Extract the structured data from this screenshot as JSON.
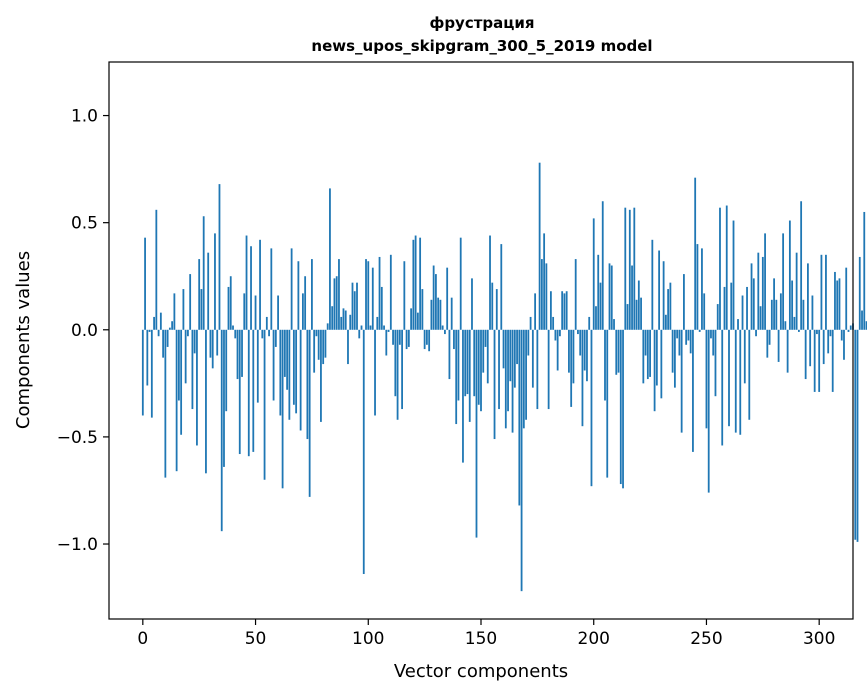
{
  "chart_data": {
    "type": "bar",
    "title": "фрустрация",
    "subtitle": "news_upos_skipgram_300_5_2019 model",
    "xlabel": "Vector components",
    "ylabel": "Components values",
    "xlim": [
      -15,
      315
    ],
    "ylim": [
      -1.35,
      1.25
    ],
    "xticks": [
      0,
      50,
      100,
      150,
      200,
      250,
      300
    ],
    "xtick_labels": [
      "0",
      "50",
      "100",
      "150",
      "200",
      "250",
      "300"
    ],
    "yticks": [
      -1.0,
      -0.5,
      0.0,
      0.5,
      1.0
    ],
    "ytick_labels": [
      "−1.0",
      "−0.5",
      "0.0",
      "0.5",
      "1.0"
    ],
    "bar_color": "#1f77b4",
    "grid": false,
    "values": [
      -0.4,
      0.43,
      -0.26,
      -0.01,
      -0.41,
      0.06,
      0.56,
      -0.03,
      0.08,
      -0.13,
      -0.69,
      -0.08,
      0.01,
      0.04,
      0.17,
      -0.66,
      -0.33,
      -0.49,
      0.19,
      -0.25,
      -0.03,
      0.26,
      -0.37,
      -0.11,
      -0.54,
      0.33,
      0.19,
      0.53,
      -0.67,
      0.36,
      -0.13,
      -0.18,
      0.45,
      -0.12,
      0.68,
      -0.94,
      -0.64,
      -0.38,
      0.2,
      0.25,
      0.02,
      -0.04,
      -0.23,
      -0.58,
      -0.22,
      0.17,
      0.44,
      -0.59,
      0.39,
      -0.57,
      0.16,
      -0.34,
      0.42,
      -0.04,
      -0.7,
      0.06,
      -0.03,
      0.38,
      -0.33,
      -0.08,
      0.16,
      -0.4,
      -0.74,
      -0.22,
      -0.28,
      -0.42,
      0.38,
      -0.35,
      -0.39,
      0.32,
      -0.47,
      0.17,
      0.25,
      -0.51,
      -0.78,
      0.33,
      -0.2,
      -0.03,
      -0.14,
      -0.43,
      -0.16,
      -0.13,
      0.03,
      0.66,
      0.11,
      0.24,
      0.25,
      0.33,
      0.06,
      0.1,
      0.09,
      -0.16,
      0.07,
      0.22,
      0.18,
      0.22,
      -0.04,
      0.02,
      -1.14,
      0.33,
      0.32,
      0.02,
      0.29,
      -0.4,
      0.06,
      0.34,
      0.2,
      0.02,
      -0.12,
      -0.01,
      0.35,
      -0.07,
      -0.31,
      -0.42,
      -0.07,
      -0.37,
      0.32,
      -0.09,
      -0.08,
      0.1,
      0.42,
      0.44,
      0.08,
      0.43,
      0.19,
      -0.09,
      -0.07,
      -0.1,
      0.14,
      0.3,
      0.26,
      0.15,
      0.14,
      0.02,
      -0.02,
      0.29,
      -0.23,
      0.15,
      -0.09,
      -0.44,
      -0.33,
      0.43,
      -0.62,
      -0.31,
      -0.3,
      -0.43,
      0.24,
      -0.31,
      -0.97,
      -0.35,
      -0.38,
      -0.2,
      -0.08,
      -0.25,
      0.44,
      0.22,
      -0.51,
      0.19,
      -0.37,
      0.4,
      -0.18,
      -0.46,
      -0.38,
      -0.24,
      -0.48,
      -0.27,
      -0.16,
      -0.82,
      -1.22,
      -0.46,
      -0.42,
      -0.12,
      0.06,
      -0.27,
      0.17,
      -0.37,
      0.78,
      0.33,
      0.45,
      0.31,
      -0.37,
      0.18,
      0.06,
      -0.05,
      -0.19,
      -0.03,
      0.18,
      0.17,
      0.18,
      -0.2,
      -0.36,
      -0.25,
      0.33,
      -0.02,
      -0.12,
      -0.45,
      -0.19,
      -0.24,
      0.06,
      -0.73,
      0.52,
      0.11,
      0.35,
      0.22,
      0.6,
      -0.33,
      -0.69,
      0.31,
      0.3,
      0.05,
      -0.21,
      -0.2,
      -0.72,
      -0.74,
      0.57,
      0.12,
      0.56,
      0.3,
      0.57,
      0.14,
      0.23,
      0.15,
      -0.25,
      -0.12,
      -0.23,
      -0.22,
      0.42,
      -0.38,
      -0.26,
      0.37,
      -0.32,
      0.32,
      0.07,
      0.19,
      0.22,
      -0.2,
      -0.27,
      -0.04,
      -0.12,
      -0.48,
      0.26,
      -0.07,
      -0.05,
      -0.11,
      -0.57,
      0.71,
      0.4,
      -0.01,
      0.38,
      0.17,
      -0.46,
      -0.76,
      -0.04,
      -0.12,
      -0.31,
      0.12,
      0.57,
      -0.54,
      0.2,
      0.58,
      -0.45,
      0.22,
      0.51,
      -0.48,
      0.05,
      -0.49,
      0.16,
      -0.25,
      0.2,
      -0.42,
      0.31,
      0.24,
      -0.03,
      0.36,
      0.11,
      0.34,
      0.45,
      -0.13,
      -0.07,
      0.14,
      0.24,
      0.14,
      -0.15,
      0.17,
      0.45,
      0.04,
      -0.2,
      0.51,
      0.23,
      0.06,
      0.36,
      -0.01,
      0.6,
      0.14,
      -0.23,
      0.31,
      -0.17,
      0.16,
      -0.29,
      -0.02,
      -0.29,
      0.35,
      -0.16,
      0.35,
      -0.11,
      -0.03,
      -0.29,
      0.27,
      0.23,
      0.24,
      -0.05,
      -0.14,
      0.29,
      -0.01,
      0.02,
      0.03,
      -0.98,
      -0.99,
      0.34,
      0.09,
      0.55,
      0.04,
      0.06
    ],
    "notes_visible": []
  }
}
